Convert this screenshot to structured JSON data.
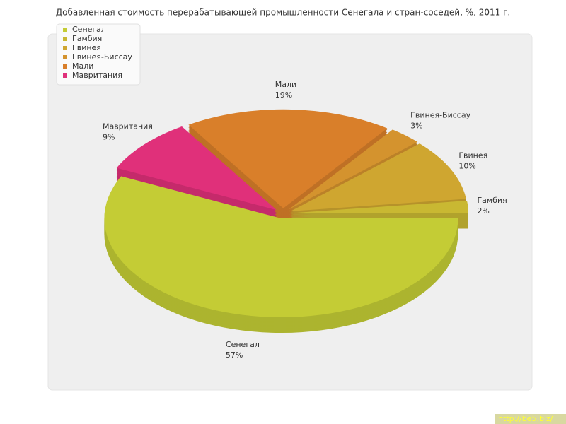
{
  "chart_data": {
    "type": "pie",
    "title": "Добавленная стоимость перерабатывающей промышленности Сенегала и стран-соседей, %, 2011 г.",
    "categories": [
      "Сенегал",
      "Гамбия",
      "Гвинея",
      "Гвинея-Биссау",
      "Мали",
      "Мавритания"
    ],
    "values": [
      57,
      2,
      10,
      3,
      19,
      9
    ],
    "value_labels": [
      "57%",
      "2%",
      "10%",
      "3%",
      "19%",
      "9%"
    ],
    "colors": [
      "#c4cc35",
      "#c9b832",
      "#cfa630",
      "#d4932e",
      "#d97f2a",
      "#e0307a"
    ],
    "legend": "top-left",
    "watermark": "http://be5.biz/"
  }
}
